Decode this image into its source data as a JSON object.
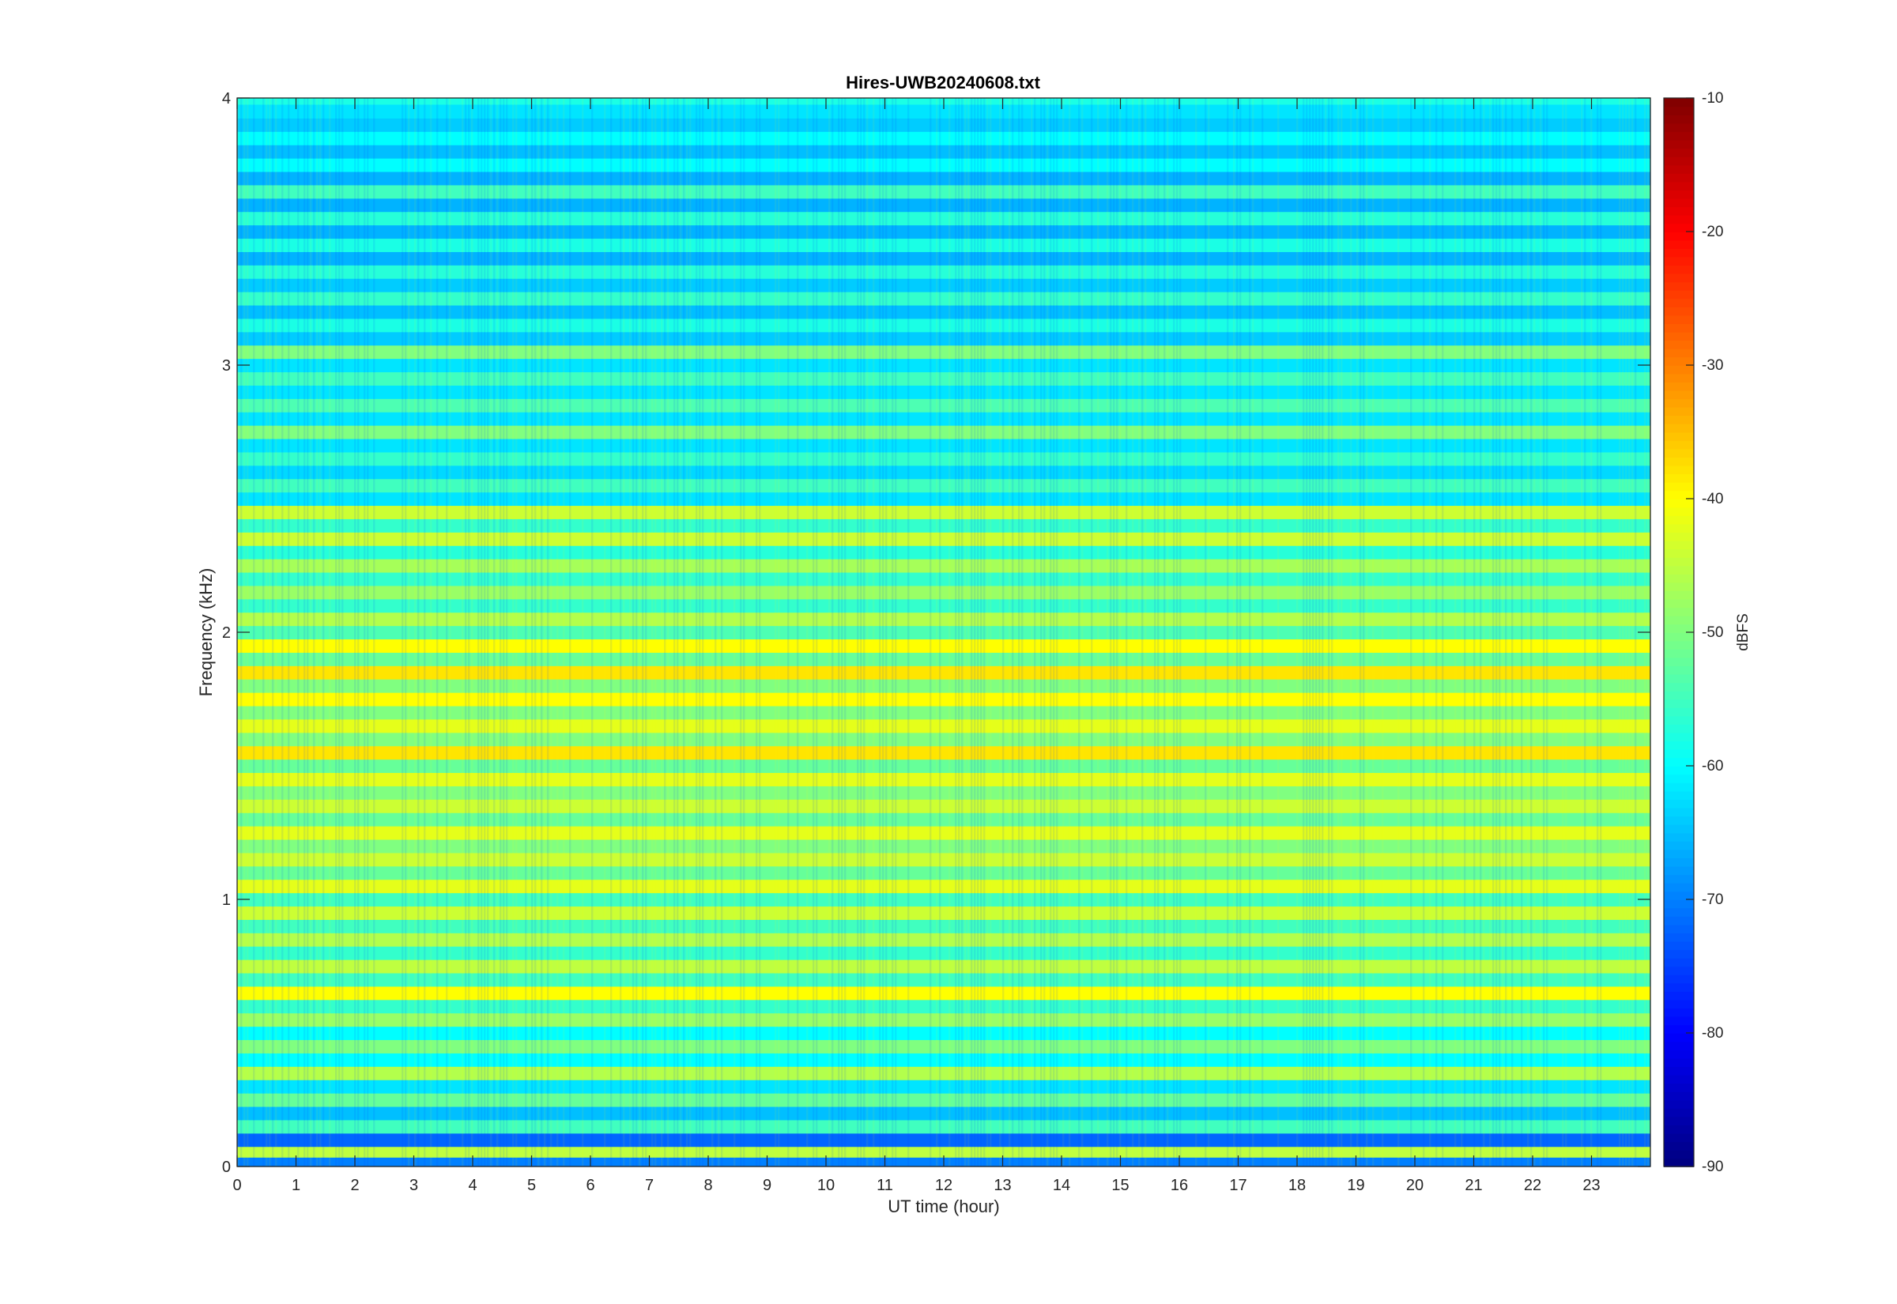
{
  "chart_data": {
    "type": "heatmap",
    "title": "Hires-UWB20240608.txt",
    "xlabel": "UT time (hour)",
    "ylabel": "Frequency (kHz)",
    "xlim": [
      0,
      24
    ],
    "ylim": [
      0,
      4
    ],
    "x_ticks": [
      "0",
      "1",
      "2",
      "3",
      "4",
      "5",
      "6",
      "7",
      "8",
      "9",
      "10",
      "11",
      "12",
      "13",
      "14",
      "15",
      "16",
      "17",
      "18",
      "19",
      "20",
      "21",
      "22",
      "23"
    ],
    "y_ticks": [
      "0",
      "1",
      "2",
      "3",
      "4"
    ],
    "colorbar": {
      "label": "dBFS",
      "range": [
        -90,
        -10
      ],
      "ticks": [
        "-90",
        "-80",
        "-70",
        "-60",
        "-50",
        "-40",
        "-30",
        "-20",
        "-10"
      ],
      "colormap": "jet"
    },
    "bands_khz_dbfs": [
      [
        0.02,
        -70
      ],
      [
        0.06,
        -45
      ],
      [
        0.1,
        -72
      ],
      [
        0.15,
        -55
      ],
      [
        0.2,
        -65
      ],
      [
        0.25,
        -52
      ],
      [
        0.3,
        -62
      ],
      [
        0.35,
        -46
      ],
      [
        0.4,
        -60
      ],
      [
        0.45,
        -50
      ],
      [
        0.5,
        -60
      ],
      [
        0.55,
        -48
      ],
      [
        0.6,
        -56
      ],
      [
        0.65,
        -40
      ],
      [
        0.7,
        -55
      ],
      [
        0.75,
        -45
      ],
      [
        0.8,
        -56
      ],
      [
        0.85,
        -46
      ],
      [
        0.9,
        -55
      ],
      [
        0.95,
        -44
      ],
      [
        1.0,
        -55
      ],
      [
        1.05,
        -42
      ],
      [
        1.1,
        -52
      ],
      [
        1.15,
        -44
      ],
      [
        1.2,
        -50
      ],
      [
        1.25,
        -42
      ],
      [
        1.3,
        -52
      ],
      [
        1.35,
        -44
      ],
      [
        1.4,
        -50
      ],
      [
        1.45,
        -42
      ],
      [
        1.5,
        -52
      ],
      [
        1.55,
        -38
      ],
      [
        1.6,
        -50
      ],
      [
        1.65,
        -42
      ],
      [
        1.7,
        -50
      ],
      [
        1.75,
        -40
      ],
      [
        1.8,
        -50
      ],
      [
        1.85,
        -38
      ],
      [
        1.9,
        -52
      ],
      [
        1.95,
        -40
      ],
      [
        2.0,
        -54
      ],
      [
        2.05,
        -46
      ],
      [
        2.1,
        -56
      ],
      [
        2.15,
        -48
      ],
      [
        2.2,
        -56
      ],
      [
        2.25,
        -47
      ],
      [
        2.3,
        -57
      ],
      [
        2.35,
        -44
      ],
      [
        2.4,
        -56
      ],
      [
        2.45,
        -44
      ],
      [
        2.5,
        -62
      ],
      [
        2.55,
        -55
      ],
      [
        2.6,
        -63
      ],
      [
        2.65,
        -56
      ],
      [
        2.7,
        -62
      ],
      [
        2.75,
        -50
      ],
      [
        2.8,
        -62
      ],
      [
        2.85,
        -54
      ],
      [
        2.9,
        -62
      ],
      [
        2.95,
        -55
      ],
      [
        3.0,
        -62
      ],
      [
        3.05,
        -50
      ],
      [
        3.1,
        -64
      ],
      [
        3.15,
        -58
      ],
      [
        3.2,
        -65
      ],
      [
        3.25,
        -56
      ],
      [
        3.3,
        -64
      ],
      [
        3.35,
        -57
      ],
      [
        3.4,
        -66
      ],
      [
        3.45,
        -58
      ],
      [
        3.5,
        -66
      ],
      [
        3.55,
        -57
      ],
      [
        3.6,
        -66
      ],
      [
        3.65,
        -55
      ],
      [
        3.7,
        -66
      ],
      [
        3.75,
        -60
      ],
      [
        3.8,
        -65
      ],
      [
        3.85,
        -60
      ],
      [
        3.9,
        -64
      ],
      [
        3.95,
        -62
      ]
    ]
  }
}
